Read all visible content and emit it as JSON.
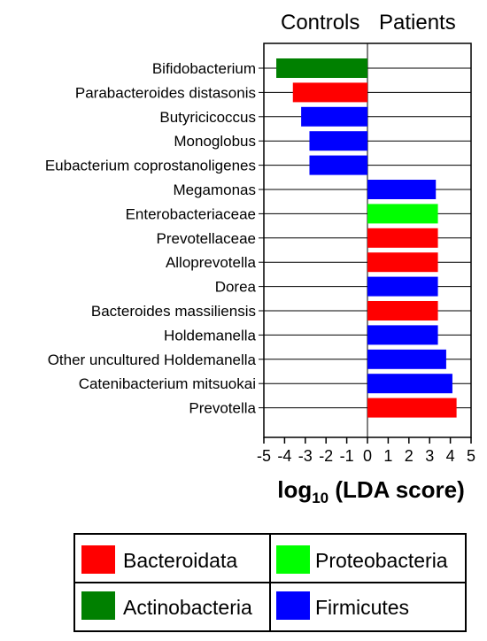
{
  "chart_data": {
    "type": "bar",
    "orientation": "horizontal",
    "group_labels": [
      "Controls",
      "Patients"
    ],
    "xlabel_main": "log",
    "xlabel_sub": "10",
    "xlabel_rest": " (LDA score)",
    "xlim": [
      -5,
      5
    ],
    "ticks": [
      "-5",
      "-4",
      "-3",
      "-2",
      "-1",
      "0",
      "1",
      "2",
      "3",
      "4",
      "5"
    ],
    "grid": "horizontal",
    "legend_placement": "bottom",
    "phyla": [
      {
        "name": "Bacteroidata",
        "color": "#ff0000"
      },
      {
        "name": "Proteobacteria",
        "color": "#00ff00"
      },
      {
        "name": "Actinobacteria",
        "color": "#008000"
      },
      {
        "name": "Firmicutes",
        "color": "#0000ff"
      }
    ],
    "categories": [
      "Bifidobacterium",
      "Parabacteroides distasonis",
      "Butyricicoccus",
      "Monoglobus",
      "Eubacterium coprostanoligenes",
      "Megamonas",
      "Enterobacteriaceae",
      "Prevotellaceae",
      "Alloprevotella",
      "Dorea",
      "Bacteroides massiliensis",
      "Holdemanella",
      "Other uncultured Holdemanella",
      "Catenibacterium mitsuokai",
      "Prevotella"
    ],
    "values": [
      -4.4,
      -3.6,
      -3.2,
      -2.8,
      -2.8,
      3.3,
      3.4,
      3.4,
      3.4,
      3.4,
      3.4,
      3.4,
      3.8,
      4.1,
      4.3
    ],
    "phylum_of_bar": [
      "Actinobacteria",
      "Bacteroidata",
      "Firmicutes",
      "Firmicutes",
      "Firmicutes",
      "Firmicutes",
      "Proteobacteria",
      "Bacteroidata",
      "Bacteroidata",
      "Firmicutes",
      "Bacteroidata",
      "Firmicutes",
      "Firmicutes",
      "Firmicutes",
      "Bacteroidata"
    ]
  }
}
